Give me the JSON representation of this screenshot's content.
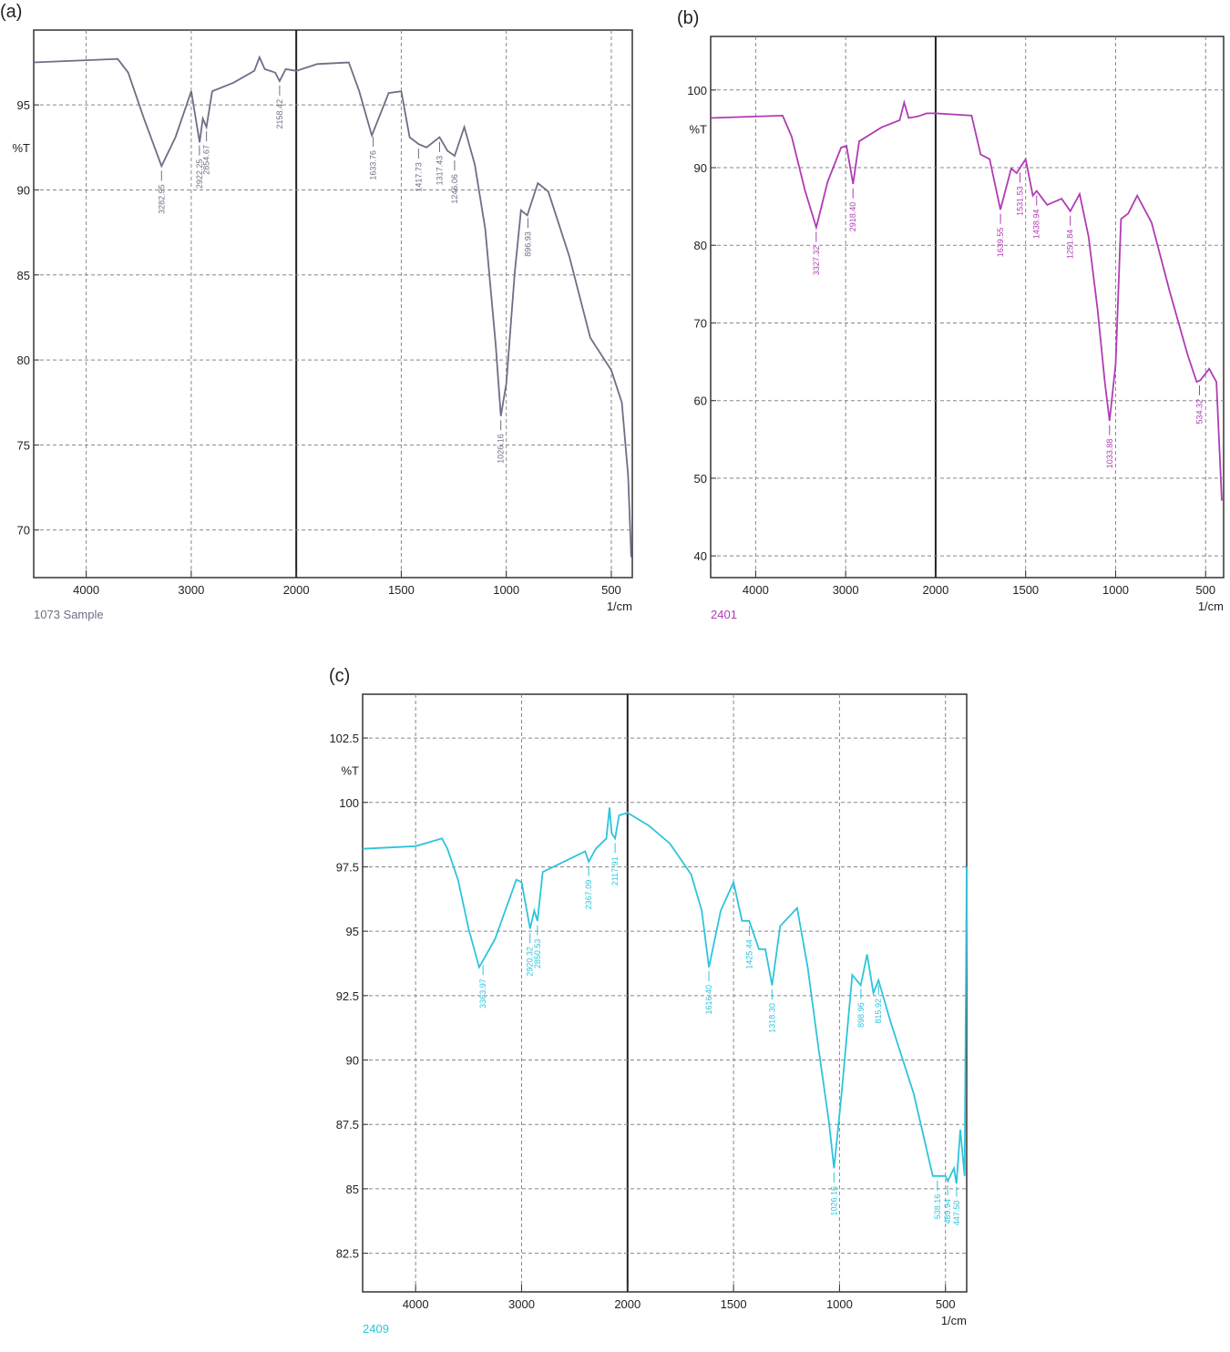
{
  "chart_data": [
    {
      "type": "line",
      "panel_label": "(a)",
      "ylabel": "%T",
      "xlabel": "1/cm",
      "xlim": [
        4500,
        400
      ],
      "xticks": [
        4000,
        3000,
        2000,
        1500,
        1000,
        500
      ],
      "ylim": [
        67.2,
        99.4
      ],
      "yticks": [
        70,
        75,
        80,
        85,
        90,
        95
      ],
      "grid": true,
      "x": [
        4500,
        3700,
        3600,
        3450,
        3283,
        3150,
        3000,
        2920,
        2890,
        2855,
        2800,
        2600,
        2400,
        2350,
        2300,
        2200,
        2158,
        2100,
        2000,
        1900,
        1750,
        1700,
        1640,
        1560,
        1500,
        1460,
        1418,
        1380,
        1318,
        1280,
        1246,
        1200,
        1150,
        1100,
        1050,
        1026,
        1000,
        960,
        930,
        900,
        850,
        800,
        700,
        600,
        500,
        450,
        420,
        405
      ],
      "series": [
        {
          "name": "1073 Sample",
          "color": "#6e6e86",
          "values": [
            97.5,
            97.7,
            96.9,
            94.2,
            91.4,
            93.1,
            95.8,
            92.8,
            94.2,
            93.7,
            95.8,
            96.3,
            97.0,
            97.8,
            97.1,
            96.9,
            96.4,
            97.1,
            97.0,
            97.4,
            97.5,
            95.8,
            93.2,
            95.7,
            95.8,
            93.1,
            92.7,
            92.5,
            93.1,
            92.3,
            92.0,
            93.7,
            91.5,
            87.7,
            80.8,
            76.7,
            78.6,
            85.1,
            88.8,
            88.5,
            90.4,
            89.9,
            86.1,
            81.3,
            79.4,
            77.5,
            73.2,
            68.4
          ]
        }
      ],
      "peaks": [
        {
          "value": 3282.95,
          "label": "3282.95"
        },
        {
          "value": 2922.25,
          "label": "2922.25"
        },
        {
          "value": 2854.67,
          "label": "2854.67"
        },
        {
          "value": 2158.42,
          "label": "2158.42"
        },
        {
          "value": 1633.76,
          "label": "1633.76"
        },
        {
          "value": 1417.73,
          "label": "1417.73"
        },
        {
          "value": 1317.43,
          "label": "1317.43"
        },
        {
          "value": 1246.06,
          "label": "1246.06"
        },
        {
          "value": 1026.16,
          "label": "1026.16"
        },
        {
          "value": 896.93,
          "label": "896.93"
        }
      ]
    },
    {
      "type": "line",
      "panel_label": "(b)",
      "ylabel": "%T",
      "xlabel": "1/cm",
      "xlim": [
        4500,
        400
      ],
      "xticks": [
        4000,
        3000,
        2000,
        1500,
        1000,
        500
      ],
      "ylim": [
        37.2,
        106.9
      ],
      "yticks": [
        40,
        50,
        60,
        70,
        80,
        90,
        100
      ],
      "grid": true,
      "x": [
        4500,
        3700,
        3600,
        3450,
        3327,
        3200,
        3050,
        2990,
        2918,
        2850,
        2600,
        2400,
        2350,
        2300,
        2200,
        2100,
        2000,
        1800,
        1750,
        1700,
        1640,
        1580,
        1550,
        1500,
        1460,
        1439,
        1380,
        1300,
        1252,
        1200,
        1150,
        1100,
        1060,
        1034,
        1000,
        970,
        930,
        880,
        800,
        700,
        600,
        550,
        530,
        480,
        440,
        410
      ],
      "series": [
        {
          "name": "2401",
          "color": "#b03cb4",
          "values": [
            96.4,
            96.7,
            94.0,
            87.0,
            82.3,
            88.2,
            92.6,
            92.8,
            87.9,
            93.4,
            95.2,
            96.1,
            98.4,
            96.4,
            96.6,
            97.0,
            97.0,
            96.7,
            91.7,
            91.1,
            84.6,
            89.9,
            89.3,
            91.1,
            86.4,
            87.0,
            85.2,
            86.0,
            84.4,
            86.6,
            81.1,
            71.7,
            62.4,
            57.4,
            64.7,
            83.4,
            84.1,
            86.4,
            82.9,
            74.1,
            65.9,
            62.4,
            62.6,
            64.1,
            62.4,
            47.1
          ]
        }
      ],
      "peaks": [
        {
          "value": 3327.32,
          "label": "3327.32"
        },
        {
          "value": 2918.4,
          "label": "2918.40"
        },
        {
          "value": 1639.55,
          "label": "1639.55"
        },
        {
          "value": 1531.53,
          "label": "1531.53"
        },
        {
          "value": 1438.94,
          "label": "1438.94"
        },
        {
          "value": 1251.84,
          "label": "1251.84"
        },
        {
          "value": 1033.88,
          "label": "1033.88"
        },
        {
          "value": 534.32,
          "label": "534.32"
        }
      ]
    },
    {
      "type": "line",
      "panel_label": "(c)",
      "ylabel": "%T",
      "xlabel": "1/cm",
      "xlim": [
        4500,
        400
      ],
      "xticks": [
        4000,
        3000,
        2000,
        1500,
        1000,
        500
      ],
      "ylim": [
        81,
        104.2
      ],
      "yticks": [
        82.5,
        85,
        87.5,
        90,
        92.5,
        95,
        97.5,
        100,
        102.5
      ],
      "grid": true,
      "x": [
        4500,
        4000,
        3750,
        3700,
        3600,
        3500,
        3400,
        3250,
        3050,
        3000,
        2920,
        2880,
        2850,
        2800,
        2600,
        2400,
        2367,
        2300,
        2200,
        2170,
        2150,
        2118,
        2080,
        2000,
        1900,
        1800,
        1700,
        1650,
        1616,
        1560,
        1500,
        1460,
        1426,
        1380,
        1350,
        1318,
        1280,
        1200,
        1150,
        1100,
        1050,
        1026,
        990,
        940,
        900,
        870,
        840,
        816,
        760,
        650,
        560,
        500,
        489,
        460,
        448,
        430,
        410,
        400
      ],
      "series": [
        {
          "name": "2409",
          "color": "#2ec4dc",
          "values": [
            98.2,
            98.3,
            98.6,
            98.2,
            97.0,
            95.1,
            93.6,
            94.7,
            97.0,
            96.9,
            95.1,
            95.8,
            95.4,
            97.3,
            97.7,
            98.1,
            97.7,
            98.2,
            98.6,
            99.8,
            98.8,
            98.6,
            99.5,
            99.6,
            99.1,
            98.4,
            97.2,
            95.8,
            93.6,
            95.8,
            96.9,
            95.4,
            95.4,
            94.3,
            94.3,
            92.9,
            95.2,
            95.9,
            93.6,
            90.5,
            87.6,
            85.8,
            88.7,
            93.3,
            92.9,
            94.1,
            92.6,
            93.1,
            91.5,
            88.7,
            85.5,
            85.5,
            85.3,
            85.8,
            85.2,
            87.3,
            85.5,
            97.5
          ]
        }
      ],
      "peaks": [
        {
          "value": 3363.97,
          "label": "3363.97"
        },
        {
          "value": 2920.32,
          "label": "2920.32"
        },
        {
          "value": 2850.53,
          "label": "2850.53"
        },
        {
          "value": 2367.09,
          "label": "2367.09"
        },
        {
          "value": 2117.91,
          "label": "2117.91"
        },
        {
          "value": 1616.4,
          "label": "1616.40"
        },
        {
          "value": 1425.44,
          "label": "1425.44"
        },
        {
          "value": 1318.3,
          "label": "1318.30"
        },
        {
          "value": 1026.16,
          "label": "1026.16"
        },
        {
          "value": 898.96,
          "label": "898.96"
        },
        {
          "value": 815.92,
          "label": "815.92"
        },
        {
          "value": 538.16,
          "label": "538.16"
        },
        {
          "value": 489.94,
          "label": "489.94"
        },
        {
          "value": 447.5,
          "label": "447.50"
        }
      ]
    }
  ]
}
